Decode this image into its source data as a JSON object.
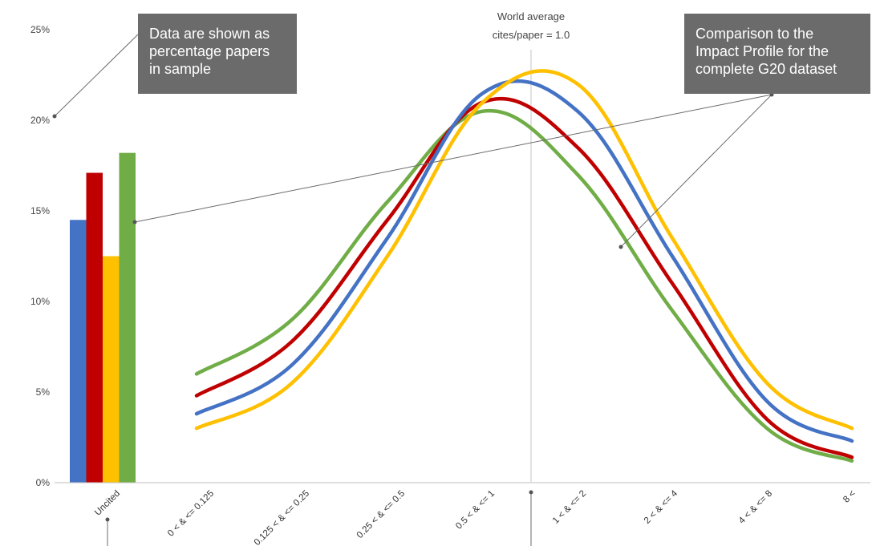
{
  "chart_data": {
    "type": "line",
    "ylim": [
      0,
      25
    ],
    "ytick_labels": [
      "0%",
      "5%",
      "10%",
      "15%",
      "20%",
      "25%"
    ],
    "ytick_values": [
      0,
      5,
      10,
      15,
      20,
      25
    ],
    "bar_category": "Uncited",
    "bar_values": [
      14.5,
      17.1,
      12.5,
      18.2
    ],
    "categories": [
      "0 < & <= 0.125",
      "0.125 < & <= 0.25",
      "0.25 < & <= 0.5",
      "0.5 < & <= 1",
      "1 < & <= 2",
      "2 < & <= 4",
      "4 < & <= 8",
      "8 <"
    ],
    "series": [
      {
        "color": "#4472c4",
        "bar_value": 14.5,
        "values": [
          3.8,
          6.5,
          13.5,
          21.5,
          20.5,
          12.5,
          4.5,
          2.3
        ]
      },
      {
        "color": "#c00000",
        "bar_value": 17.1,
        "values": [
          4.8,
          7.8,
          14.5,
          21.0,
          18.5,
          11.0,
          3.5,
          1.4
        ]
      },
      {
        "color": "#ffc000",
        "bar_value": 12.5,
        "values": [
          3.0,
          5.5,
          12.5,
          21.0,
          22.0,
          13.5,
          5.5,
          3.0
        ]
      },
      {
        "color": "#70ad47",
        "bar_value": 18.2,
        "values": [
          6.0,
          9.0,
          15.5,
          20.5,
          17.0,
          9.5,
          3.0,
          1.2
        ]
      }
    ],
    "reference_line": {
      "label_line1": "World average",
      "label_line2": "cites/paper = 1.0"
    },
    "grid": false
  },
  "callouts": {
    "left": [
      "Data are shown as",
      "percentage papers",
      "in sample"
    ],
    "right": [
      "Comparison to the",
      "Impact Profile for the",
      "complete G20 dataset"
    ]
  }
}
